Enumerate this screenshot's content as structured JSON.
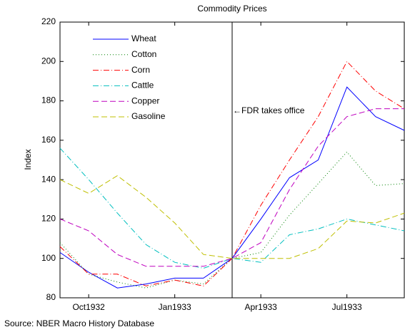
{
  "chart_data": {
    "type": "line",
    "title": "Commodity Prices",
    "ylabel": "Index",
    "source": "Source: NBER Macro History Database",
    "x": [
      "1932-09",
      "1932-10",
      "1932-11",
      "1932-12",
      "1933-01",
      "1933-02",
      "1933-03",
      "1933-04",
      "1933-05",
      "1933-06",
      "1933-07",
      "1933-08",
      "1933-09"
    ],
    "xlim": [
      "1932-09",
      "1933-09"
    ],
    "xticks": [
      {
        "value": "1932-10",
        "label": "Oct1932"
      },
      {
        "value": "1933-01",
        "label": "Jan1933"
      },
      {
        "value": "1933-04",
        "label": "Apr1933"
      },
      {
        "value": "1933-07",
        "label": "Jul1933"
      }
    ],
    "ylim": [
      80,
      220
    ],
    "yticks": [
      80,
      100,
      120,
      140,
      160,
      180,
      200,
      220
    ],
    "legend": "upper left",
    "annotations": [
      {
        "x": "1933-03",
        "text": "←FDR takes office"
      }
    ],
    "series": [
      {
        "name": "Wheat",
        "color": "#0000ff",
        "dash": "solid",
        "values": [
          103,
          93,
          85,
          87,
          90,
          90,
          100,
          120,
          141,
          150,
          187,
          172,
          165
        ]
      },
      {
        "name": "Cotton",
        "color": "#008000",
        "dash": "dotted",
        "values": [
          108,
          92,
          88,
          85,
          89,
          87,
          100,
          103,
          122,
          138,
          154,
          137,
          138
        ]
      },
      {
        "name": "Corn",
        "color": "#ff0000",
        "dash": "dashdot",
        "values": [
          106,
          92,
          92,
          86,
          89,
          86,
          100,
          127,
          150,
          172,
          200,
          185,
          176
        ]
      },
      {
        "name": "Cattle",
        "color": "#00bfbf",
        "dash": "dashdot",
        "values": [
          156,
          140,
          123,
          107,
          98,
          95,
          100,
          98,
          112,
          115,
          120,
          117,
          114
        ]
      },
      {
        "name": "Copper",
        "color": "#bf00bf",
        "dash": "dashed",
        "values": [
          120,
          114,
          102,
          96,
          96,
          96,
          100,
          108,
          135,
          157,
          172,
          176,
          176
        ]
      },
      {
        "name": "Gasoline",
        "color": "#bfbf00",
        "dash": "dashed",
        "values": [
          140,
          133,
          142,
          131,
          118,
          102,
          100,
          100,
          100,
          105,
          119,
          118,
          123
        ]
      }
    ]
  }
}
